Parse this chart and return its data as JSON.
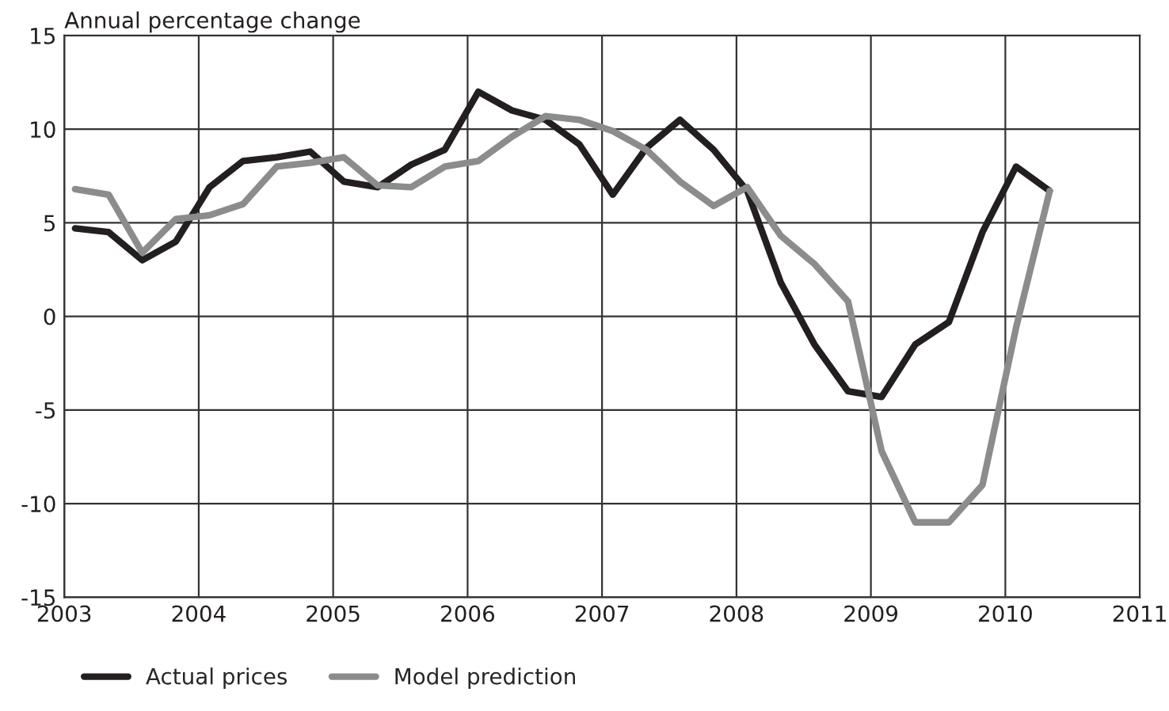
{
  "chart_data": {
    "type": "line",
    "ylabel": "Annual percentage change",
    "x": [
      2003.08,
      2003.33,
      2003.58,
      2003.83,
      2004.08,
      2004.33,
      2004.58,
      2004.83,
      2005.08,
      2005.33,
      2005.58,
      2005.83,
      2006.08,
      2006.33,
      2006.58,
      2006.83,
      2007.08,
      2007.33,
      2007.58,
      2007.83,
      2008.08,
      2008.33,
      2008.58,
      2008.83,
      2009.08,
      2009.33,
      2009.58,
      2009.83,
      2010.08,
      2010.33
    ],
    "series": [
      {
        "name": "Actual prices",
        "color": "#231f20",
        "values": [
          4.7,
          4.5,
          3.0,
          4.0,
          6.9,
          8.3,
          8.5,
          8.8,
          7.2,
          6.9,
          8.1,
          8.9,
          12.0,
          11.0,
          10.5,
          9.2,
          6.5,
          9.0,
          10.5,
          8.9,
          6.7,
          1.8,
          -1.5,
          -4.0,
          -4.3,
          -1.5,
          -0.3,
          4.5,
          8.0,
          6.7
        ]
      },
      {
        "name": "Model prediction",
        "color": "#8c8c8c",
        "values": [
          6.8,
          6.5,
          3.4,
          5.2,
          5.4,
          6.0,
          8.0,
          8.2,
          8.5,
          7.0,
          6.9,
          8.0,
          8.3,
          9.6,
          10.7,
          10.5,
          9.9,
          8.9,
          7.2,
          5.9,
          6.9,
          4.3,
          2.8,
          0.8,
          -7.2,
          -11.0,
          -11.0,
          -9.0,
          -0.6,
          6.7
        ]
      }
    ],
    "xlim": [
      2003,
      2011
    ],
    "xticks": [
      2003,
      2004,
      2005,
      2006,
      2007,
      2008,
      2009,
      2010,
      2011
    ],
    "ylim": [
      -15,
      15
    ],
    "yticks": [
      -15,
      -10,
      -5,
      0,
      5,
      10,
      15
    ],
    "grid": true,
    "legend": "bottom left",
    "marker": "none",
    "line_style": "solid"
  }
}
